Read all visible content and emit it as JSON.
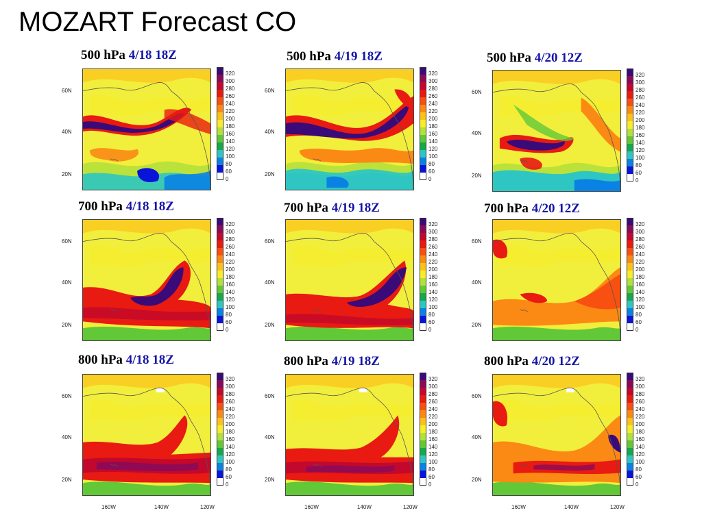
{
  "slide_title": "MOZART Forecast CO",
  "levels": [
    "500 hPa",
    "700 hPa",
    "800 hPa"
  ],
  "dates": [
    "4/18 18Z",
    "4/19 18Z",
    "4/20 12Z"
  ],
  "latitude_labels": [
    "60N",
    "40N",
    "20N"
  ],
  "longitude_labels": [
    "160W",
    "140W",
    "120W"
  ],
  "colorbar_ticks": [
    "320",
    "300",
    "280",
    "260",
    "240",
    "220",
    "200",
    "180",
    "160",
    "140",
    "120",
    "100",
    "80",
    "60",
    "0"
  ],
  "colorbar_colors": [
    "#3a0a78",
    "#8a0a5a",
    "#c2082c",
    "#e81a12",
    "#f85010",
    "#fb8a14",
    "#fdc21a",
    "#f6ee28",
    "#b4e03a",
    "#62c838",
    "#16a84a",
    "#2ec6c2",
    "#0a82e4",
    "#0a14d8",
    "#ffffff"
  ],
  "colors": {
    "background_field": "#f2ee3c",
    "title_date": "#1515a8",
    "coastline": "#555555"
  }
}
